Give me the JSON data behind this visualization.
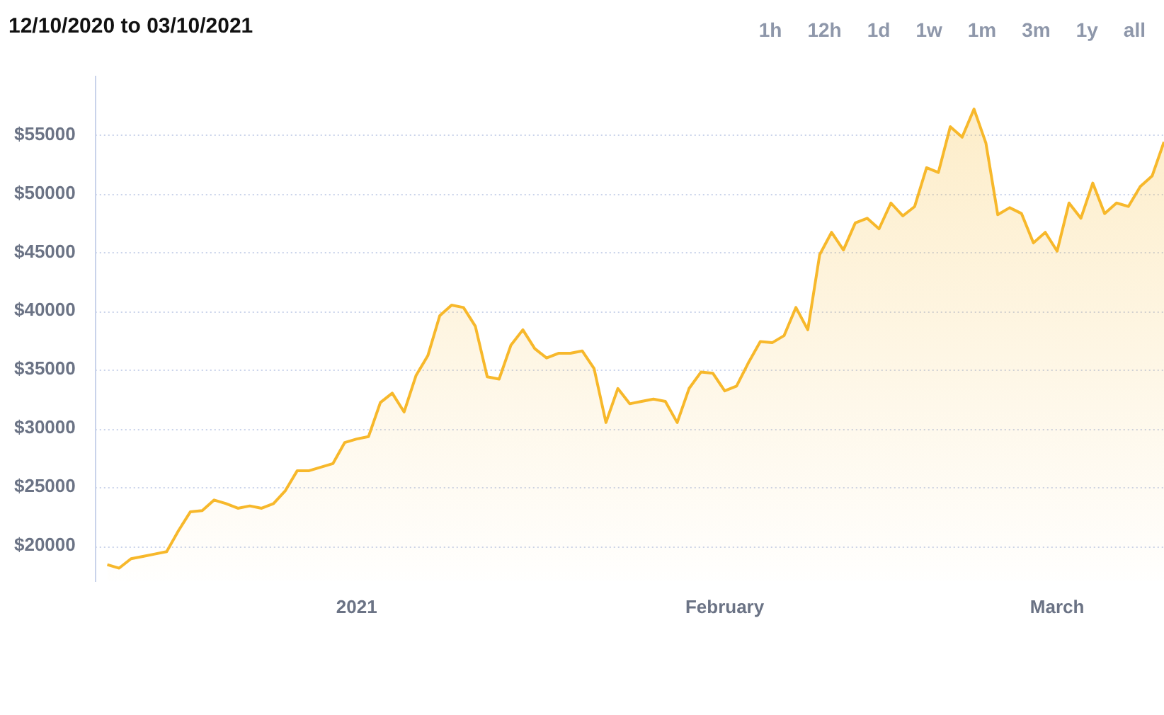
{
  "chart_data": {
    "type": "area",
    "title": "12/10/2020 to 03/10/2021",
    "annotations": [
      "1h",
      "12h",
      "1d",
      "1w",
      "1m",
      "3m",
      "1y",
      "all"
    ],
    "x": [
      "2020-12-11",
      "2020-12-12",
      "2020-12-13",
      "2020-12-14",
      "2020-12-15",
      "2020-12-16",
      "2020-12-17",
      "2020-12-18",
      "2020-12-19",
      "2020-12-20",
      "2020-12-21",
      "2020-12-22",
      "2020-12-23",
      "2020-12-24",
      "2020-12-25",
      "2020-12-26",
      "2020-12-27",
      "2020-12-28",
      "2020-12-29",
      "2020-12-30",
      "2020-12-31",
      "2021-01-01",
      "2021-01-02",
      "2021-01-03",
      "2021-01-04",
      "2021-01-05",
      "2021-01-06",
      "2021-01-07",
      "2021-01-08",
      "2021-01-09",
      "2021-01-10",
      "2021-01-11",
      "2021-01-12",
      "2021-01-13",
      "2021-01-14",
      "2021-01-15",
      "2021-01-16",
      "2021-01-17",
      "2021-01-18",
      "2021-01-19",
      "2021-01-20",
      "2021-01-21",
      "2021-01-22",
      "2021-01-23",
      "2021-01-24",
      "2021-01-25",
      "2021-01-26",
      "2021-01-27",
      "2021-01-28",
      "2021-01-29",
      "2021-01-30",
      "2021-01-31",
      "2021-02-01",
      "2021-02-02",
      "2021-02-03",
      "2021-02-04",
      "2021-02-05",
      "2021-02-06",
      "2021-02-07",
      "2021-02-08",
      "2021-02-09",
      "2021-02-10",
      "2021-02-11",
      "2021-02-12",
      "2021-02-13",
      "2021-02-14",
      "2021-02-15",
      "2021-02-16",
      "2021-02-17",
      "2021-02-18",
      "2021-02-19",
      "2021-02-20",
      "2021-02-21",
      "2021-02-22",
      "2021-02-23",
      "2021-02-24",
      "2021-02-25",
      "2021-02-26",
      "2021-02-27",
      "2021-02-28",
      "2021-03-01",
      "2021-03-02",
      "2021-03-03",
      "2021-03-04",
      "2021-03-05",
      "2021-03-06",
      "2021-03-07",
      "2021-03-08",
      "2021-03-09",
      "2021-03-10"
    ],
    "series": [
      {
        "color": "#f7b82b",
        "values": [
          18400,
          18100,
          18900,
          19100,
          19300,
          19500,
          21300,
          22900,
          23000,
          23900,
          23600,
          23200,
          23400,
          23200,
          23600,
          24700,
          26400,
          26400,
          26700,
          27000,
          28800,
          29100,
          29300,
          32200,
          33000,
          31400,
          34500,
          36200,
          39600,
          40500,
          40300,
          38700,
          34400,
          34200,
          37100,
          38400,
          36800,
          36000,
          36400,
          36400,
          36600,
          35100,
          30500,
          33400,
          32100,
          32300,
          32500,
          32300,
          30500,
          33400,
          34800,
          34700,
          33200,
          33600,
          35600,
          37400,
          37300,
          37900,
          40300,
          38400,
          44800,
          46700,
          45200,
          47500,
          47900,
          47000,
          49200,
          48100,
          48900,
          52200,
          51800,
          55700,
          54800,
          57200,
          54300,
          48200,
          48800,
          48300,
          45800,
          46700,
          45100,
          49200,
          47900,
          50900,
          48300,
          49200,
          48900,
          50600,
          51500,
          54400
        ]
      }
    ],
    "xlim": [
      "2020-12-10",
      "2021-03-10"
    ],
    "xticks": [
      {
        "value": "2021-01-01",
        "label": "2021"
      },
      {
        "value": "2021-02-01",
        "label": "February"
      },
      {
        "value": "2021-03-01",
        "label": "March"
      }
    ],
    "ylim": [
      17000,
      60000
    ],
    "yticks": [
      {
        "value": 20000,
        "label": "$20000"
      },
      {
        "value": 25000,
        "label": "$25000"
      },
      {
        "value": 30000,
        "label": "$30000"
      },
      {
        "value": 35000,
        "label": "$35000"
      },
      {
        "value": 40000,
        "label": "$40000"
      },
      {
        "value": 45000,
        "label": "$45000"
      },
      {
        "value": 50000,
        "label": "$50000"
      },
      {
        "value": 55000,
        "label": "$55000"
      }
    ],
    "grid": "y",
    "legend": false
  }
}
